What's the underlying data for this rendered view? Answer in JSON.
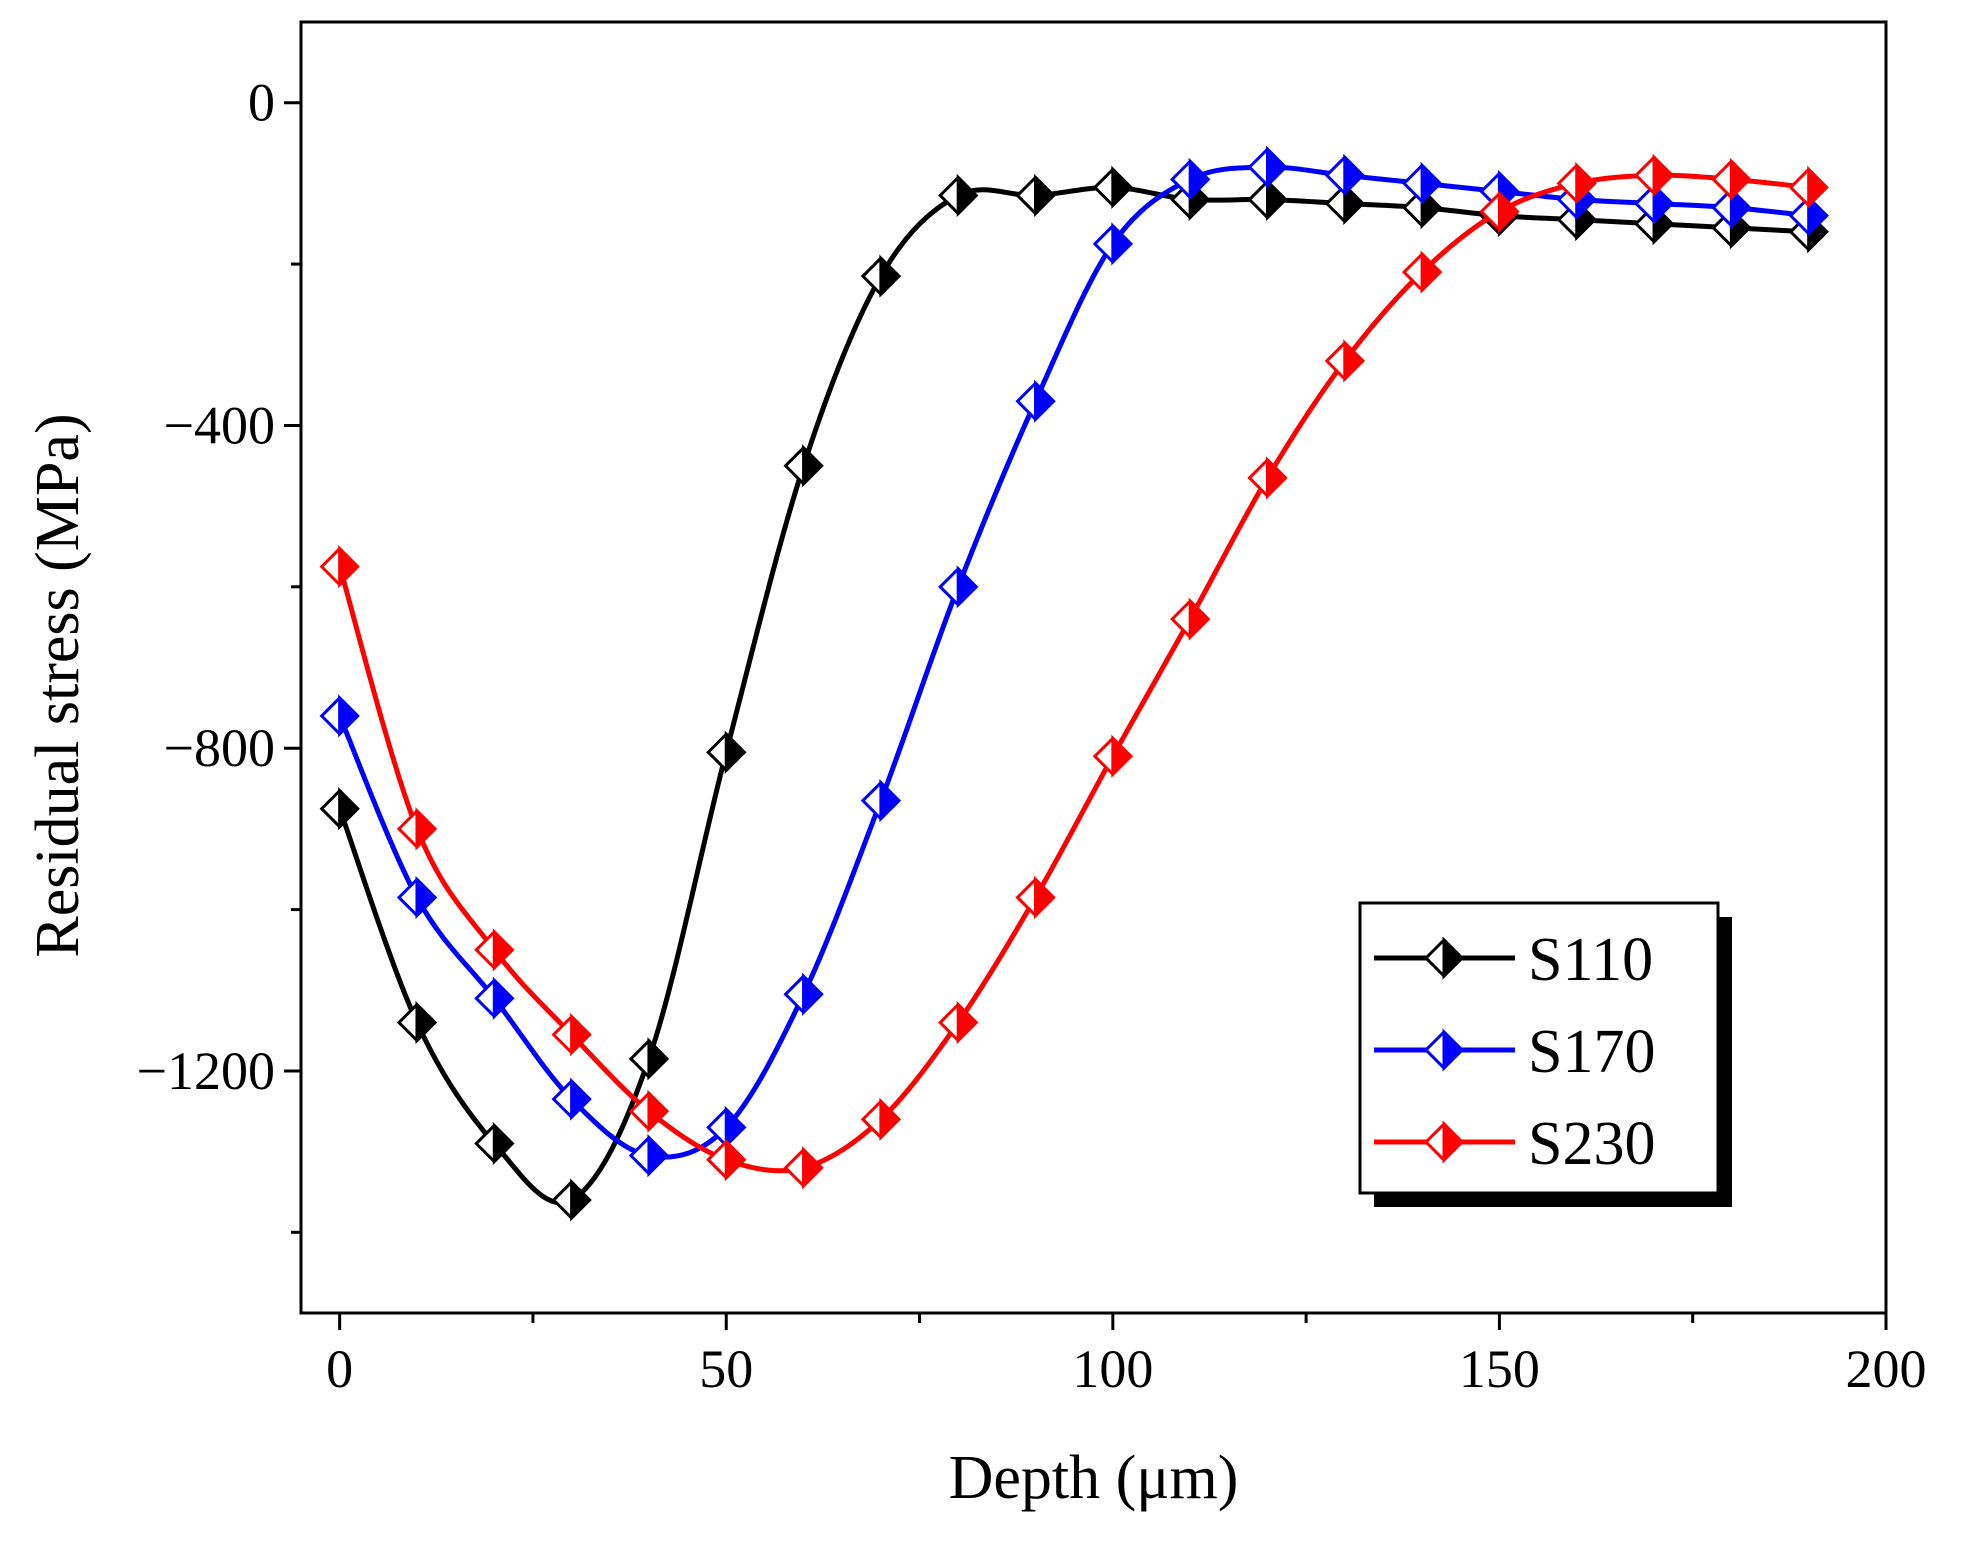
{
  "chart_data": {
    "type": "line",
    "title": "",
    "xlabel": "Depth (μm)",
    "ylabel": "Residual stress (MPa)",
    "xlim": [
      -5,
      200
    ],
    "ylim": [
      -1500,
      100
    ],
    "xticks": [
      0,
      50,
      100,
      150,
      200
    ],
    "xtick_labels": [
      "0",
      "50",
      "100",
      "150",
      "200"
    ],
    "yticks": [
      0,
      -400,
      -800,
      -1200
    ],
    "ytick_labels": [
      "0",
      "−400",
      "−800",
      "−1200"
    ],
    "marker": "half-filled diamond",
    "grid": false,
    "legend_position": "lower-right",
    "x": [
      0,
      10,
      20,
      30,
      40,
      50,
      60,
      70,
      80,
      90,
      100,
      110,
      120,
      130,
      140,
      150,
      160,
      170,
      180,
      190
    ],
    "series": [
      {
        "name": "S110",
        "color": "#000000",
        "values": [
          -875,
          -1140,
          -1290,
          -1360,
          -1185,
          -805,
          -450,
          -215,
          -115,
          -115,
          -105,
          -120,
          -120,
          -125,
          -130,
          -140,
          -145,
          -150,
          -155,
          -160
        ]
      },
      {
        "name": "S170",
        "color": "#0000ff",
        "values": [
          -760,
          -985,
          -1110,
          -1235,
          -1305,
          -1270,
          -1105,
          -865,
          -600,
          -370,
          -175,
          -95,
          -80,
          -90,
          -100,
          -110,
          -120,
          -125,
          -130,
          -140
        ]
      },
      {
        "name": "S230",
        "color": "#ff0000",
        "values": [
          -575,
          -900,
          -1050,
          -1155,
          -1250,
          -1310,
          -1320,
          -1260,
          -1140,
          -985,
          -810,
          -640,
          -465,
          -320,
          -210,
          -135,
          -100,
          -90,
          -95,
          -105
        ]
      }
    ]
  }
}
